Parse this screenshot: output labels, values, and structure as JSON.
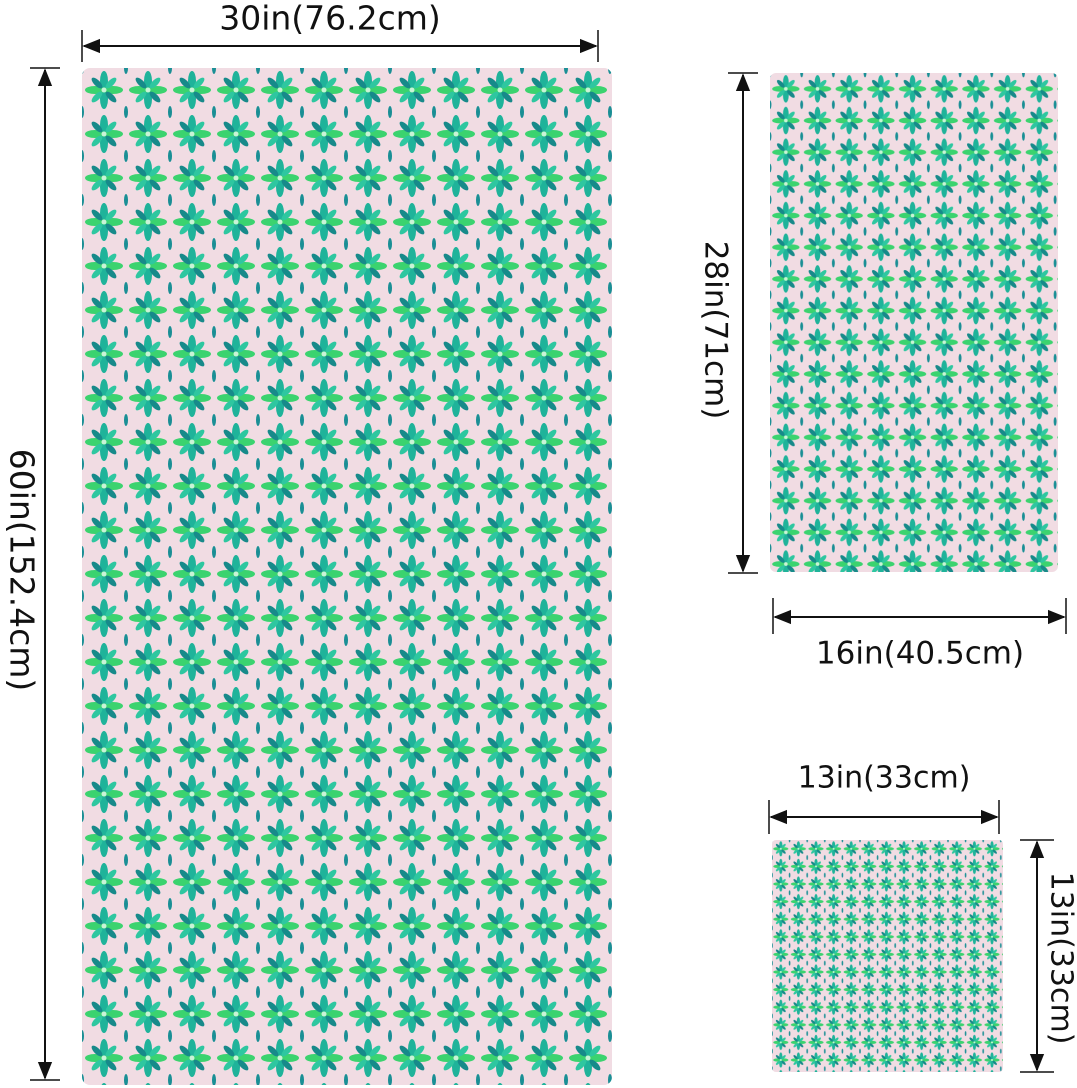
{
  "towels": [
    {
      "width": "30in(76.2cm)",
      "height": "60in(152.4cm)"
    },
    {
      "width": "16in(40.5cm)",
      "height": "28in(71cm)"
    },
    {
      "width": "13in(33cm)",
      "height": "13in(33cm)"
    }
  ]
}
